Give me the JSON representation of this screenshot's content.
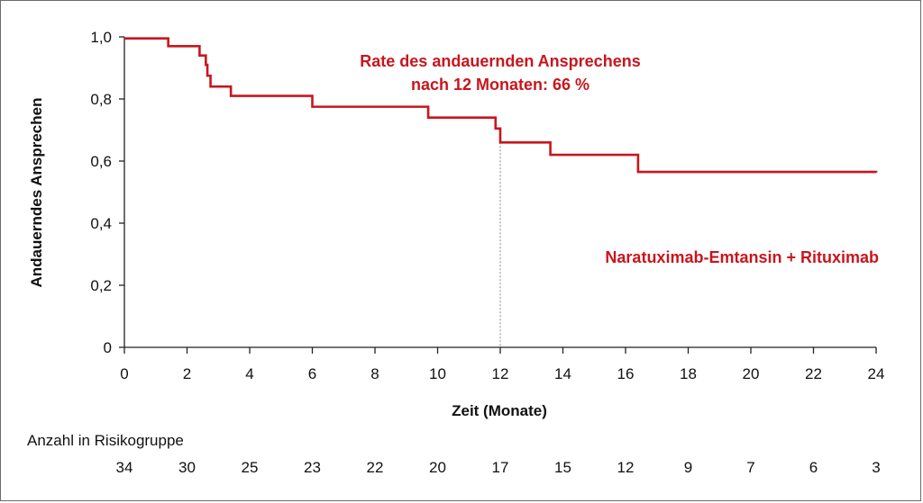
{
  "chart_data": {
    "type": "line",
    "title": "",
    "xlabel": "Zeit (Monate)",
    "ylabel": "Andauerndes Ansprechen",
    "xlim": [
      0,
      24
    ],
    "ylim": [
      0,
      1.0
    ],
    "x_ticks": [
      0,
      2,
      4,
      6,
      8,
      10,
      12,
      14,
      16,
      18,
      20,
      22,
      24
    ],
    "x_tick_labels": [
      "0",
      "2",
      "4",
      "6",
      "8",
      "10",
      "12",
      "14",
      "16",
      "18",
      "20",
      "22",
      "24"
    ],
    "y_ticks": [
      0,
      0.2,
      0.4,
      0.6,
      0.8,
      1.0
    ],
    "y_tick_labels": [
      "0",
      "0,2",
      "0,4",
      "0,6",
      "0,8",
      "1,0"
    ],
    "grid": false,
    "line_color": "#c8161d",
    "reference_line": {
      "x": 12,
      "y": 0.66,
      "style": "dotted",
      "color": "#888888"
    },
    "series": [
      {
        "name": "Naratuximab-Emtansin + Rituximab",
        "step": true,
        "x": [
          0,
          1.4,
          2.4,
          2.6,
          2.65,
          2.75,
          3.4,
          6.0,
          9.7,
          11.85,
          12.0,
          13.6,
          16.4,
          24.0
        ],
        "y": [
          0.995,
          0.97,
          0.94,
          0.91,
          0.875,
          0.84,
          0.81,
          0.775,
          0.74,
          0.705,
          0.66,
          0.62,
          0.565,
          0.563
        ]
      }
    ],
    "annotations": [
      {
        "text_lines": [
          "Rate des andauernden Ansprechens",
          "nach 12 Monaten: 66 %"
        ]
      },
      {
        "text": "Naratuximab-Emtansin + Rituximab"
      }
    ],
    "risk_table": {
      "title": "Anzahl in Risikogruppe",
      "x": [
        0,
        2,
        4,
        6,
        8,
        10,
        12,
        14,
        16,
        18,
        20,
        22,
        24
      ],
      "numbers": [
        "34",
        "30",
        "25",
        "23",
        "22",
        "20",
        "17",
        "15",
        "12",
        "9",
        "7",
        "6",
        "3"
      ]
    }
  }
}
